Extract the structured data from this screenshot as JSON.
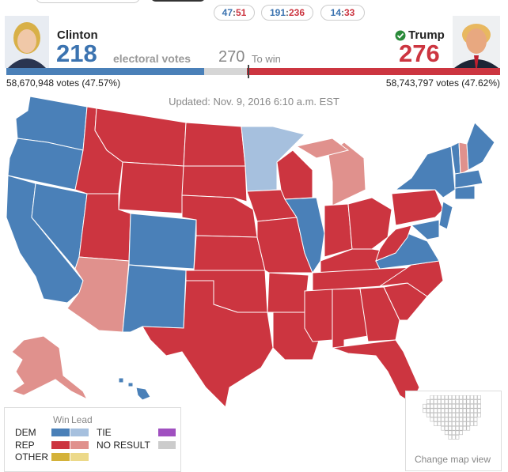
{
  "tabs": [
    [
      "47",
      ":",
      "51"
    ],
    [
      "191",
      ":",
      "236"
    ],
    [
      "14",
      ":",
      "33"
    ]
  ],
  "candidates": {
    "dem": {
      "name": "Clinton",
      "electoral": "218",
      "label": "electoral votes",
      "popular": "58,670,948 votes (47.57%)"
    },
    "rep": {
      "name": "Trump",
      "electoral": "276",
      "popular": "58,743,797 votes (47.62%)"
    }
  },
  "to_win": {
    "number": "270",
    "label": "To win"
  },
  "updated": "Updated: Nov. 9, 2016 6:10 a.m. EST",
  "legend": {
    "headers": [
      "Win",
      "Lead"
    ],
    "rows": [
      "DEM",
      "REP",
      "OTHER"
    ],
    "other_rows": [
      "TIE",
      "NO RESULT"
    ]
  },
  "change_map_view": "Change map view"
}
